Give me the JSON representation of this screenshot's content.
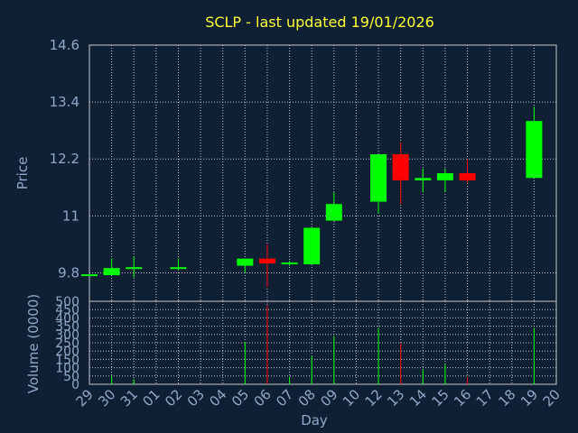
{
  "chart_data": {
    "type": "candlestick",
    "title": "SCLP - last updated 19/01/2026",
    "xlabel": "Day",
    "ylabel": "Price",
    "volume_label": "Volume (0000)",
    "grid": true,
    "categories": [
      "29",
      "30",
      "31",
      "01",
      "02",
      "03",
      "04",
      "05",
      "06",
      "07",
      "08",
      "09",
      "10",
      "12",
      "13",
      "14",
      "15",
      "16",
      "17",
      "18",
      "19",
      "20"
    ],
    "price_ticks": [
      "9.8",
      "11",
      "12.2",
      "13.4",
      "14.6"
    ],
    "price_range": [
      9.2,
      14.6
    ],
    "volume_ticks": [
      "0",
      "50",
      "100",
      "150",
      "200",
      "250",
      "300",
      "350",
      "400",
      "450",
      "500"
    ],
    "volume_range": [
      0,
      500
    ],
    "candles": [
      {
        "x": "29",
        "open": 9.75,
        "close": 9.75,
        "high": 9.75,
        "low": 9.75
      },
      {
        "x": "30",
        "open": 9.75,
        "close": 9.9,
        "high": 10.1,
        "low": 9.75
      },
      {
        "x": "31",
        "open": 9.9,
        "close": 9.9,
        "high": 10.15,
        "low": 9.7
      },
      {
        "x": "02",
        "open": 9.9,
        "close": 9.9,
        "high": 10.1,
        "low": 9.85
      },
      {
        "x": "05",
        "open": 9.95,
        "close": 10.1,
        "high": 10.1,
        "low": 9.8
      },
      {
        "x": "06",
        "open": 10.1,
        "close": 10.0,
        "high": 10.4,
        "low": 9.5
      },
      {
        "x": "07",
        "open": 9.98,
        "close": 10.0,
        "high": 10.05,
        "low": 9.95
      },
      {
        "x": "08",
        "open": 9.98,
        "close": 10.75,
        "high": 10.75,
        "low": 9.98
      },
      {
        "x": "09",
        "open": 10.9,
        "close": 11.25,
        "high": 11.5,
        "low": 10.9
      },
      {
        "x": "12",
        "open": 11.3,
        "close": 12.3,
        "high": 12.3,
        "low": 11.05
      },
      {
        "x": "13",
        "open": 12.3,
        "close": 11.75,
        "high": 12.55,
        "low": 11.25
      },
      {
        "x": "14",
        "open": 11.75,
        "close": 11.8,
        "high": 12.0,
        "low": 11.5
      },
      {
        "x": "15",
        "open": 11.75,
        "close": 11.9,
        "high": 12.0,
        "low": 11.5
      },
      {
        "x": "16",
        "open": 11.9,
        "close": 11.75,
        "high": 12.2,
        "low": 11.7
      },
      {
        "x": "19",
        "open": 11.8,
        "close": 13.0,
        "high": 13.3,
        "low": 11.8
      }
    ],
    "volume": [
      {
        "x": "30",
        "value": 50,
        "dir": "up"
      },
      {
        "x": "31",
        "value": 30,
        "dir": "up"
      },
      {
        "x": "05",
        "value": 255,
        "dir": "up"
      },
      {
        "x": "06",
        "value": 475,
        "dir": "down"
      },
      {
        "x": "07",
        "value": 45,
        "dir": "up"
      },
      {
        "x": "08",
        "value": 170,
        "dir": "up"
      },
      {
        "x": "09",
        "value": 290,
        "dir": "up"
      },
      {
        "x": "12",
        "value": 340,
        "dir": "up"
      },
      {
        "x": "13",
        "value": 245,
        "dir": "down"
      },
      {
        "x": "14",
        "value": 90,
        "dir": "up"
      },
      {
        "x": "15",
        "value": 120,
        "dir": "up"
      },
      {
        "x": "16",
        "value": 45,
        "dir": "down"
      },
      {
        "x": "19",
        "value": 340,
        "dir": "up"
      }
    ],
    "colors": {
      "up": "#00ff00",
      "down": "#ff0000",
      "background": "#0f2035",
      "grid": "#c8c8c8",
      "text": "#8fa8c8",
      "title": "#ffff33"
    }
  }
}
